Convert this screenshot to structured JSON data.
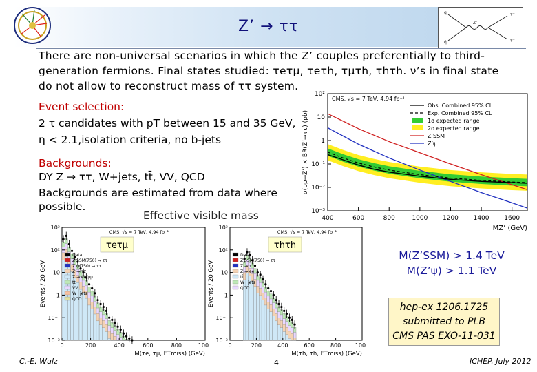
{
  "slide": {
    "title": "Z’ → ττ",
    "intro_text": "There are non-universal scenarios in which the Z’ couples preferentially to third-generation fermions. Final states studied: τeτμ, τeτh, τμτh, τhτh. ν’s in final state do not allow to reconstruct mass of ττ system.",
    "selection_heading": "Event selection:",
    "selection_line1": "2 τ candidates with pT between 15 and 35 GeV,",
    "selection_line2": "η < 2.1,isolation criteria, no b-jets",
    "backgrounds_heading": "Backgrounds:",
    "backgrounds_line1": "DY Z → ττ, W+jets, tt̄, VV, QCD",
    "backgrounds_line2": "Backgrounds are estimated from data where possible.",
    "effective_mass_label": "Effective visible mass",
    "mass_limit1": "M(Z’SSM) > 1.4 TeV",
    "mass_limit2": "M(Z’ψ) > 1.1 TeV",
    "reference_line1": "hep-ex 1206.1725",
    "reference_line2": "submitted to PLB",
    "reference_line3": "CMS PAS EXO-11-031",
    "footer_left": "C.-E. Wulz",
    "footer_center": "4",
    "footer_right": "ICHEP, July 2012"
  },
  "chart_data": [
    {
      "type": "line",
      "title": "CMS, √s = 7 TeV, 4.94 fb⁻¹",
      "xlabel": "MZ’ (GeV)",
      "ylabel": "σ(pp→Z’) × BR(Z’→ττ) (pb)",
      "xlim": [
        400,
        1700
      ],
      "ylim": [
        0.001,
        100
      ],
      "yscale": "log",
      "x_ticks": [
        400,
        600,
        800,
        1000,
        1200,
        1400,
        1600
      ],
      "y_tick_labels": [
        "10⁻³",
        "10⁻²",
        "10⁻¹",
        "1",
        "10",
        "10²"
      ],
      "legend": [
        "Obs. Combined 95% CL",
        "Exp. Combined 95% CL",
        "1σ expected range",
        "2σ expected range",
        "Z’SSM",
        "Z’ψ"
      ],
      "series": [
        {
          "name": "Obs. Combined 95% CL",
          "x": [
            400,
            500,
            600,
            700,
            800,
            1000,
            1200,
            1400,
            1600,
            1700
          ],
          "values": [
            0.25,
            0.15,
            0.09,
            0.06,
            0.045,
            0.03,
            0.022,
            0.018,
            0.016,
            0.015
          ]
        },
        {
          "name": "Exp. Combined 95% CL",
          "x": [
            400,
            500,
            600,
            700,
            800,
            1000,
            1200,
            1400,
            1600,
            1700
          ],
          "values": [
            0.32,
            0.18,
            0.11,
            0.075,
            0.055,
            0.035,
            0.025,
            0.02,
            0.017,
            0.016
          ]
        },
        {
          "name": "Z’SSM",
          "x": [
            400,
            600,
            800,
            1000,
            1200,
            1400,
            1600,
            1700
          ],
          "values": [
            14,
            3.2,
            0.9,
            0.3,
            0.1,
            0.035,
            0.013,
            0.008
          ]
        },
        {
          "name": "Z’ψ",
          "x": [
            400,
            600,
            800,
            1000,
            1200,
            1400,
            1600,
            1700
          ],
          "values": [
            3.5,
            0.7,
            0.18,
            0.055,
            0.018,
            0.006,
            0.0022,
            0.0013
          ]
        }
      ]
    },
    {
      "type": "bar",
      "channel_label": "τeτμ",
      "title": "CMS, √s = 7 TeV, 4.94 fb⁻¹",
      "xlabel": "M(τe, τμ, ETmiss) (GeV)",
      "ylabel": "Events / 20 GeV",
      "yscale": "log",
      "ylim": [
        0.01,
        1000
      ],
      "x_ticks": [
        0,
        200,
        400,
        600,
        800,
        1000
      ],
      "y_tick_labels": [
        "10³",
        "10²",
        "10",
        "1",
        "10⁻¹",
        "10⁻²"
      ],
      "legend": [
        "Data",
        "Z’SSM(750) → ττ",
        "Z’ψ(750) → ττ",
        "Z → ττ",
        "Z → ee/μμ",
        "tt̄",
        "VV",
        "W+jets",
        "QCD"
      ],
      "x": [
        10,
        30,
        50,
        70,
        90,
        110,
        130,
        150,
        170,
        190,
        210,
        230,
        250,
        270,
        290,
        310,
        330,
        350,
        370,
        390,
        410,
        430,
        450,
        470,
        490
      ],
      "data_values": [
        300,
        420,
        180,
        90,
        50,
        30,
        15,
        10,
        6,
        3,
        2,
        1.2,
        0.6,
        0.4,
        0.3,
        0.2,
        0.1,
        0.08,
        0.06,
        0.04,
        0.03,
        0.02,
        0.015,
        0.012,
        0.01
      ]
    },
    {
      "type": "bar",
      "channel_label": "τhτh",
      "title": "CMS, √s = 7 TeV, 4.94 fb⁻¹",
      "xlabel": "M(τh, τh, ETmiss) (GeV)",
      "ylabel": "Events / 20 GeV",
      "yscale": "log",
      "ylim": [
        0.01,
        1000
      ],
      "x_ticks": [
        0,
        200,
        400,
        600,
        800,
        1000
      ],
      "y_tick_labels": [
        "10³",
        "10²",
        "10",
        "1",
        "10⁻¹",
        "10⁻²"
      ],
      "legend": [
        "Data",
        "Z’SSM(750) → ττ",
        "Z → ττ",
        "Z → ee",
        "tt̄",
        "W+jets",
        "QCD"
      ],
      "x": [
        110,
        130,
        150,
        170,
        190,
        210,
        230,
        250,
        270,
        290,
        310,
        330,
        350,
        370,
        390,
        410,
        430,
        450,
        470,
        490
      ],
      "data_values": [
        40,
        80,
        60,
        35,
        20,
        10,
        8,
        5,
        3,
        2,
        1.5,
        1,
        0.6,
        0.4,
        0.3,
        0.2,
        0.15,
        0.1,
        0.08,
        0.05
      ]
    }
  ]
}
